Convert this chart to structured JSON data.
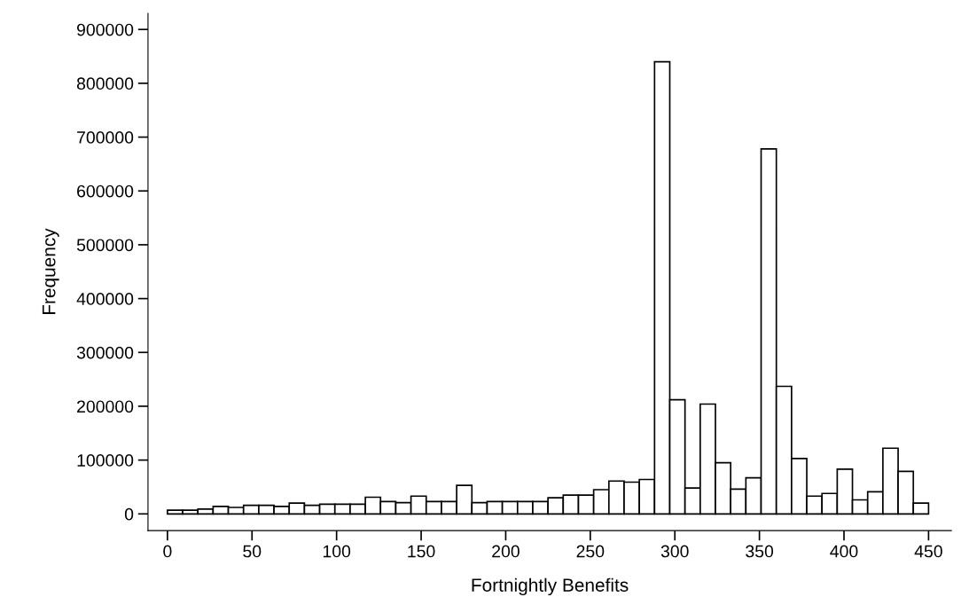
{
  "chart_data": {
    "type": "histogram",
    "xlabel": "Fortnightly Benefits",
    "ylabel": "Frequency",
    "bins": [
      0,
      9,
      18,
      27,
      36,
      45,
      54,
      63,
      72,
      81,
      90,
      99,
      108,
      117,
      126,
      135,
      144,
      153,
      162,
      171,
      180,
      189,
      198,
      207,
      216,
      225,
      234,
      243,
      252,
      261,
      270,
      279,
      288,
      297,
      306,
      315,
      324,
      333,
      342,
      351,
      360,
      369,
      378,
      387,
      396,
      405,
      414,
      423,
      432,
      441,
      450
    ],
    "values": [
      7000,
      7000,
      9000,
      14000,
      12000,
      16000,
      16000,
      14000,
      20000,
      16000,
      18000,
      18000,
      18000,
      31000,
      23000,
      21000,
      33000,
      23000,
      23000,
      53000,
      21000,
      23000,
      23000,
      23000,
      23000,
      30000,
      35000,
      35000,
      45000,
      61000,
      59000,
      64000,
      840000,
      212000,
      48000,
      204000,
      95000,
      46000,
      67000,
      678000,
      237000,
      103000,
      33000,
      38000,
      83000,
      26000,
      41000,
      122000,
      79000,
      20000
    ],
    "color": "#ffffff",
    "xlim": [
      -11.5,
      463.5
    ],
    "ylim": [
      -31000,
      930000
    ],
    "xticks": [
      0,
      50,
      100,
      150,
      200,
      250,
      300,
      350,
      400,
      450
    ],
    "yticks": [
      0,
      100000,
      200000,
      300000,
      400000,
      500000,
      600000,
      700000,
      800000,
      900000
    ],
    "grid": false
  }
}
